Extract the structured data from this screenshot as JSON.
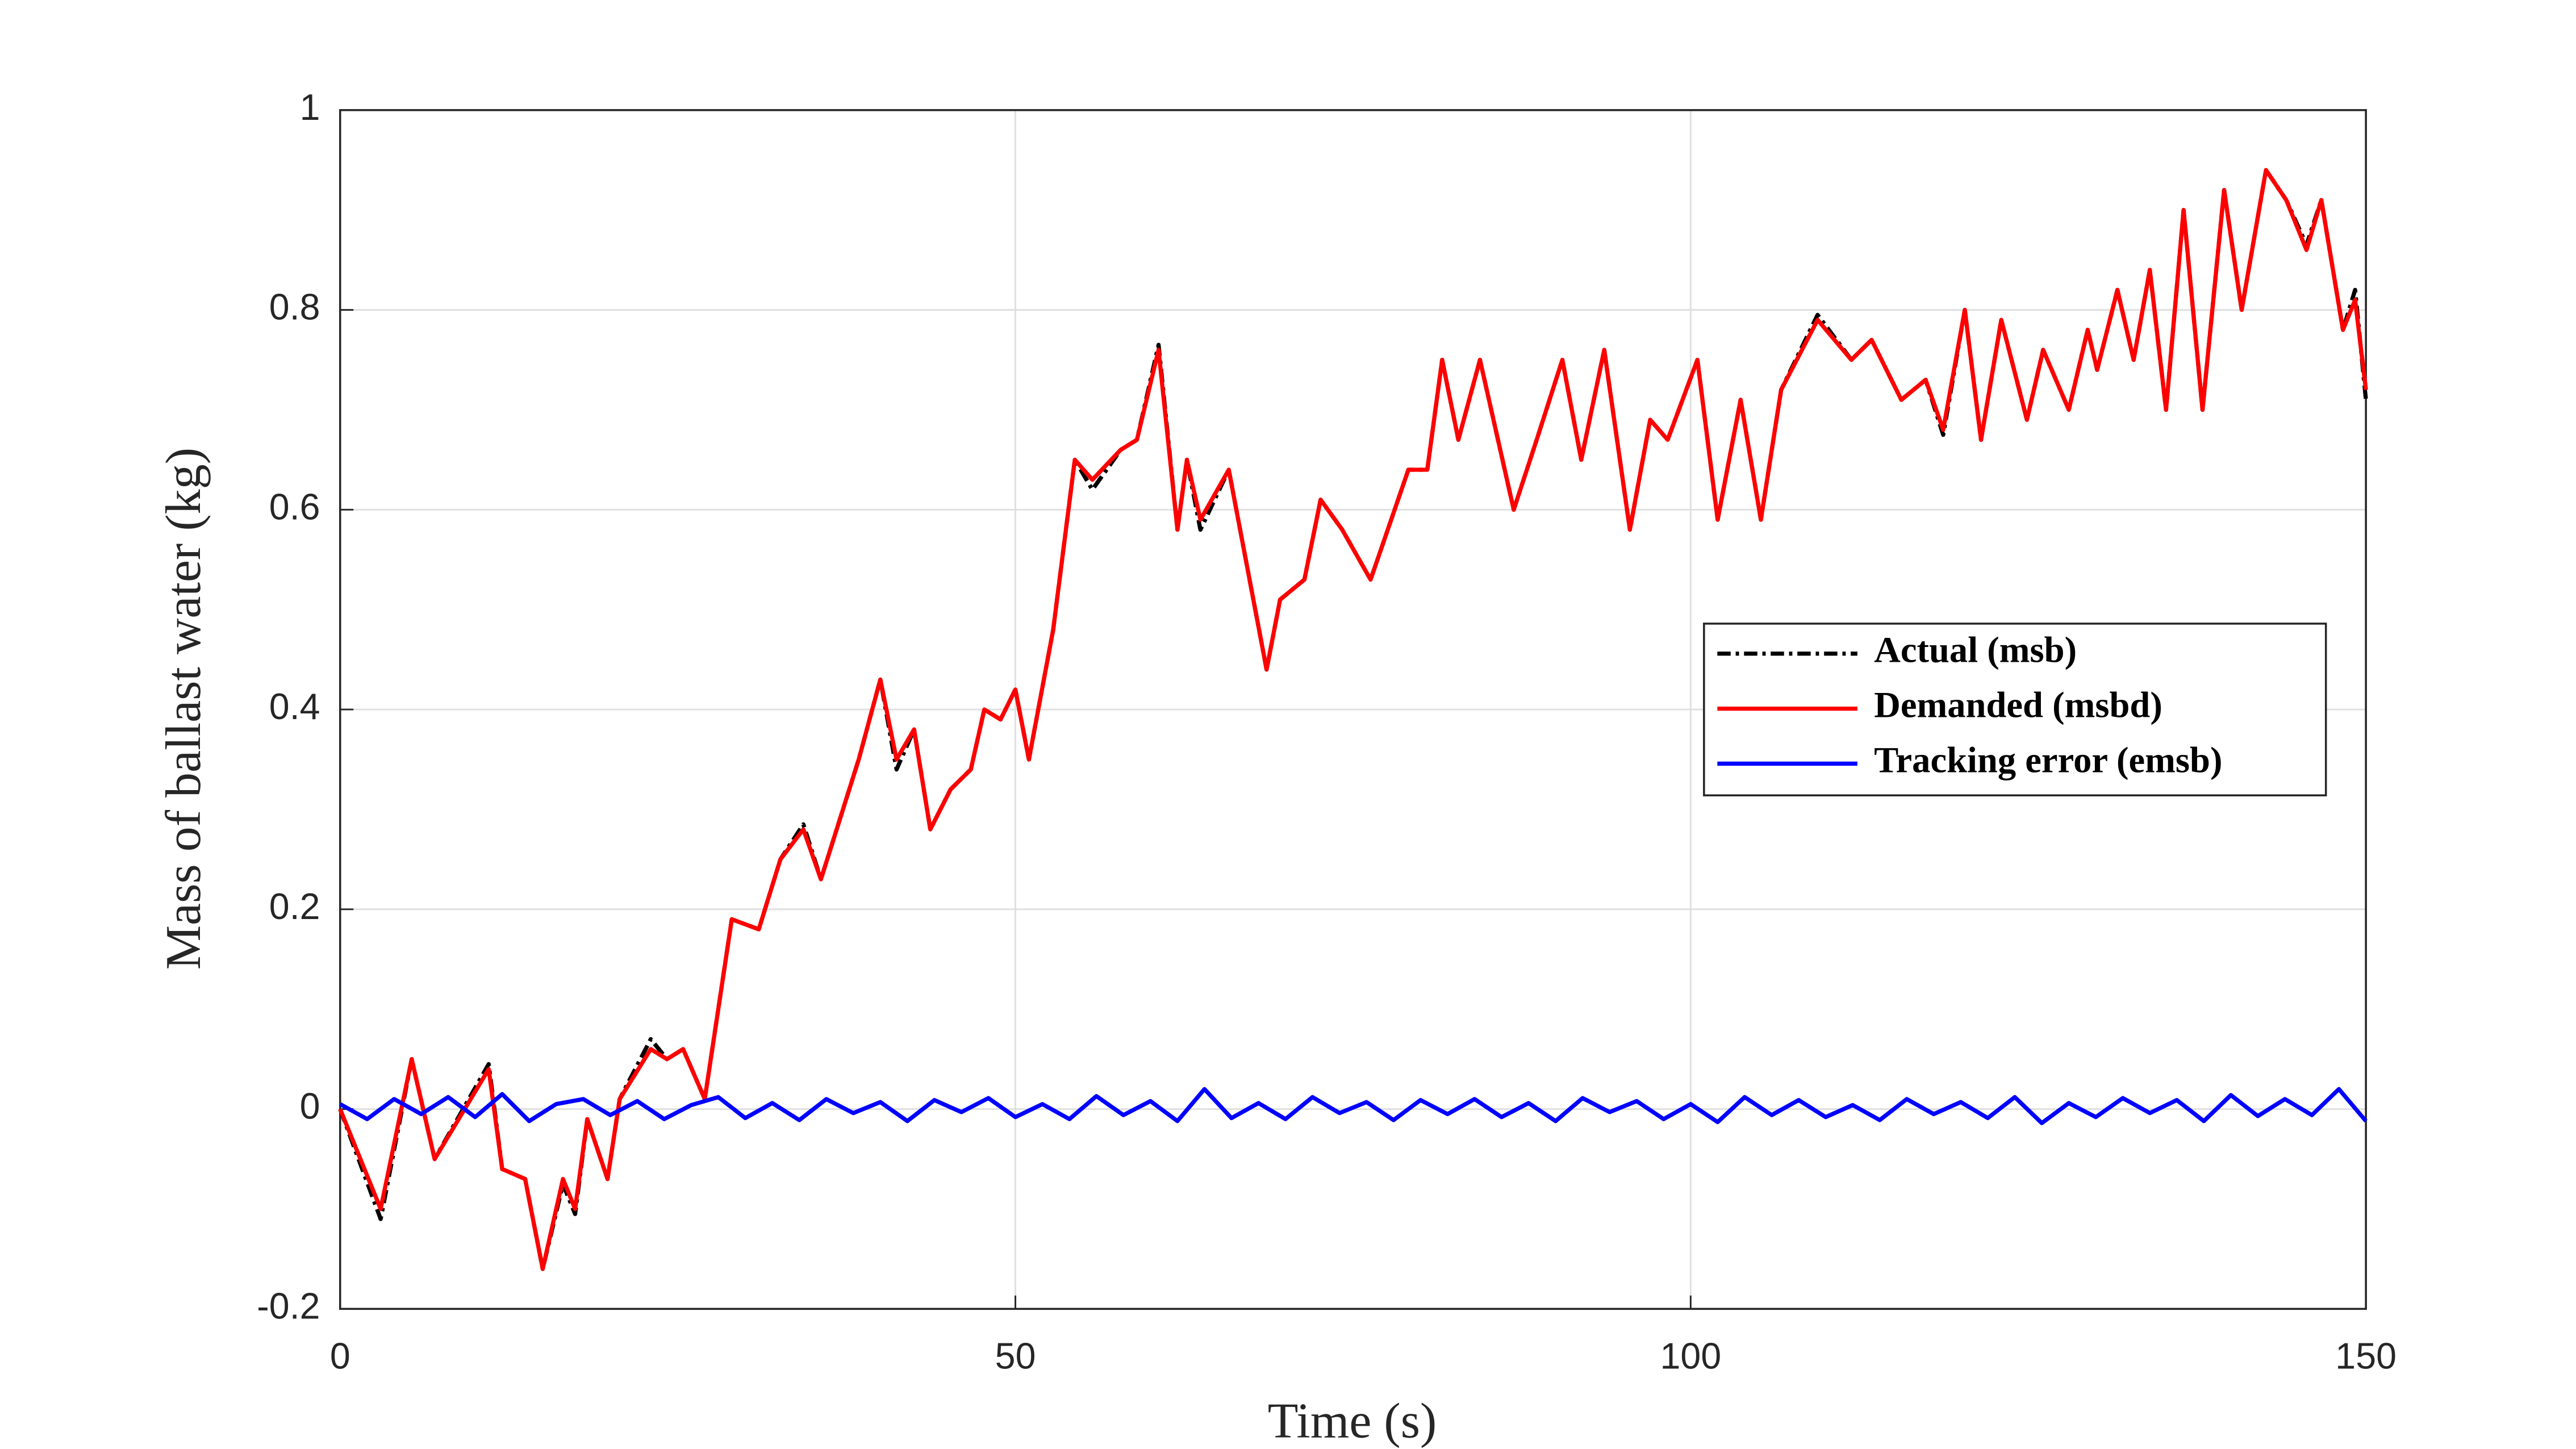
{
  "chart_data": {
    "type": "line",
    "xlabel": "Time (s)",
    "ylabel": "Mass of ballast water (kg)",
    "xlim": [
      0,
      150
    ],
    "xticks": [
      0,
      50,
      100,
      150
    ],
    "ylim": [
      -0.2,
      1
    ],
    "yticks": [
      -0.2,
      0,
      0.2,
      0.4,
      0.6,
      0.8,
      1
    ],
    "grid": true,
    "legend": "right",
    "series": [
      {
        "name": "Actual (msb)",
        "color": "#000000",
        "dash": "dashdot",
        "x": [
          0,
          3,
          5.3,
          7,
          11,
          12,
          13.7,
          15,
          16.5,
          17.4,
          18.3,
          19.8,
          20.7,
          23,
          24.2,
          25.4,
          27,
          29,
          31,
          32.6,
          34.3,
          35.6,
          38.4,
          40,
          41.2,
          42.5,
          43.7,
          45.2,
          46.7,
          47.7,
          48.9,
          50,
          51,
          52.8,
          54.4,
          55.7,
          57.8,
          59,
          60.6,
          62,
          62.7,
          63.7,
          65.8,
          68.6,
          69.6,
          71.4,
          72.6,
          74.2,
          76.3,
          79.1,
          80.5,
          81.6,
          82.8,
          84.4,
          86.9,
          88.6,
          90.5,
          91.9,
          93.6,
          95.5,
          97,
          98.3,
          100.5,
          102,
          103.7,
          105.2,
          106.7,
          109.4,
          111.9,
          113.4,
          115.6,
          117.4,
          118.7,
          120.3,
          121.5,
          123,
          124.9,
          126.1,
          128,
          129.4,
          130.1,
          131.6,
          132.8,
          134,
          135.2,
          136.5,
          137.9,
          139.5,
          140.8,
          142.6,
          144.1,
          145.6,
          146.7,
          148.3,
          149.2,
          150
        ],
        "values": [
          0,
          -0.11,
          0.05,
          -0.05,
          0.045,
          -0.06,
          -0.07,
          -0.16,
          -0.075,
          -0.105,
          -0.01,
          -0.07,
          0.01,
          0.07,
          0.05,
          0.06,
          0.01,
          0.19,
          0.18,
          0.25,
          0.285,
          0.23,
          0.35,
          0.43,
          0.34,
          0.38,
          0.28,
          0.32,
          0.34,
          0.4,
          0.39,
          0.42,
          0.35,
          0.48,
          0.65,
          0.62,
          0.66,
          0.67,
          0.765,
          0.58,
          0.65,
          0.58,
          0.64,
          0.44,
          0.51,
          0.53,
          0.61,
          0.58,
          0.53,
          0.64,
          0.64,
          0.75,
          0.67,
          0.75,
          0.6,
          0.67,
          0.75,
          0.65,
          0.76,
          0.58,
          0.69,
          0.67,
          0.75,
          0.59,
          0.71,
          0.59,
          0.72,
          0.795,
          0.75,
          0.77,
          0.71,
          0.73,
          0.675,
          0.8,
          0.67,
          0.79,
          0.69,
          0.76,
          0.7,
          0.78,
          0.74,
          0.82,
          0.75,
          0.84,
          0.7,
          0.9,
          0.7,
          0.92,
          0.8,
          0.94,
          0.91,
          0.865,
          0.91,
          0.78,
          0.82,
          0.71
        ]
      },
      {
        "name": "Demanded (msbd)",
        "color": "#ff0000",
        "dash": "solid",
        "x": [
          0,
          3,
          5.3,
          7,
          11,
          12,
          13.7,
          15,
          16.5,
          17.4,
          18.3,
          19.8,
          20.7,
          23,
          24.2,
          25.4,
          27,
          29,
          31,
          32.6,
          34.3,
          35.6,
          38.4,
          40,
          41.2,
          42.5,
          43.7,
          45.2,
          46.7,
          47.7,
          48.9,
          50,
          51,
          52.8,
          54.4,
          55.7,
          57.8,
          59,
          60.6,
          62,
          62.7,
          63.7,
          65.8,
          68.6,
          69.6,
          71.4,
          72.6,
          74.2,
          76.3,
          79.1,
          80.5,
          81.6,
          82.8,
          84.4,
          86.9,
          88.6,
          90.5,
          91.9,
          93.6,
          95.5,
          97,
          98.3,
          100.5,
          102,
          103.7,
          105.2,
          106.7,
          109.4,
          111.9,
          113.4,
          115.6,
          117.4,
          118.7,
          120.3,
          121.5,
          123,
          124.9,
          126.1,
          128,
          129.4,
          130.1,
          131.6,
          132.8,
          134,
          135.2,
          136.5,
          137.9,
          139.5,
          140.8,
          142.6,
          144.1,
          145.6,
          146.7,
          148.3,
          149.2,
          150
        ],
        "values": [
          0,
          -0.1,
          0.05,
          -0.05,
          0.04,
          -0.06,
          -0.07,
          -0.16,
          -0.07,
          -0.1,
          -0.01,
          -0.07,
          0.01,
          0.06,
          0.05,
          0.06,
          0.01,
          0.19,
          0.18,
          0.25,
          0.28,
          0.23,
          0.35,
          0.43,
          0.35,
          0.38,
          0.28,
          0.32,
          0.34,
          0.4,
          0.39,
          0.42,
          0.35,
          0.48,
          0.65,
          0.63,
          0.66,
          0.67,
          0.76,
          0.58,
          0.65,
          0.59,
          0.64,
          0.44,
          0.51,
          0.53,
          0.61,
          0.58,
          0.53,
          0.64,
          0.64,
          0.75,
          0.67,
          0.75,
          0.6,
          0.67,
          0.75,
          0.65,
          0.76,
          0.58,
          0.69,
          0.67,
          0.75,
          0.59,
          0.71,
          0.59,
          0.72,
          0.79,
          0.75,
          0.77,
          0.71,
          0.73,
          0.68,
          0.8,
          0.67,
          0.79,
          0.69,
          0.76,
          0.7,
          0.78,
          0.74,
          0.82,
          0.75,
          0.84,
          0.7,
          0.9,
          0.7,
          0.92,
          0.8,
          0.94,
          0.91,
          0.86,
          0.91,
          0.78,
          0.81,
          0.72
        ]
      },
      {
        "name": "Tracking error (emsb)",
        "color": "#0000ff",
        "dash": "solid",
        "x": [
          0,
          2,
          4,
          6,
          8,
          10,
          12,
          14,
          16,
          18,
          20,
          22,
          24,
          26,
          28,
          30,
          32,
          34,
          36,
          38,
          40,
          42,
          44,
          46,
          48,
          50,
          52,
          54,
          56,
          58,
          60,
          62,
          64,
          66,
          68,
          70,
          72,
          74,
          76,
          78,
          80,
          82,
          84,
          86,
          88,
          90,
          92,
          94,
          96,
          98,
          100,
          102,
          104,
          106,
          108,
          110,
          112,
          114,
          116,
          118,
          120,
          122,
          124,
          126,
          128,
          130,
          132,
          134,
          136,
          138,
          140,
          142,
          144,
          146,
          148,
          150
        ],
        "values": [
          0.005,
          -0.01,
          0.01,
          -0.005,
          0.012,
          -0.008,
          0.015,
          -0.012,
          0.005,
          0.01,
          -0.006,
          0.008,
          -0.01,
          0.004,
          0.012,
          -0.009,
          0.006,
          -0.011,
          0.01,
          -0.004,
          0.007,
          -0.012,
          0.009,
          -0.003,
          0.011,
          -0.008,
          0.005,
          -0.01,
          0.013,
          -0.006,
          0.008,
          -0.012,
          0.02,
          -0.009,
          0.006,
          -0.01,
          0.012,
          -0.004,
          0.007,
          -0.011,
          0.009,
          -0.005,
          0.01,
          -0.008,
          0.006,
          -0.012,
          0.011,
          -0.003,
          0.008,
          -0.01,
          0.005,
          -0.013,
          0.012,
          -0.006,
          0.009,
          -0.008,
          0.004,
          -0.011,
          0.01,
          -0.005,
          0.007,
          -0.009,
          0.012,
          -0.014,
          0.006,
          -0.008,
          0.011,
          -0.004,
          0.009,
          -0.012,
          0.014,
          -0.007,
          0.01,
          -0.006,
          0.02,
          -0.012
        ]
      }
    ]
  }
}
